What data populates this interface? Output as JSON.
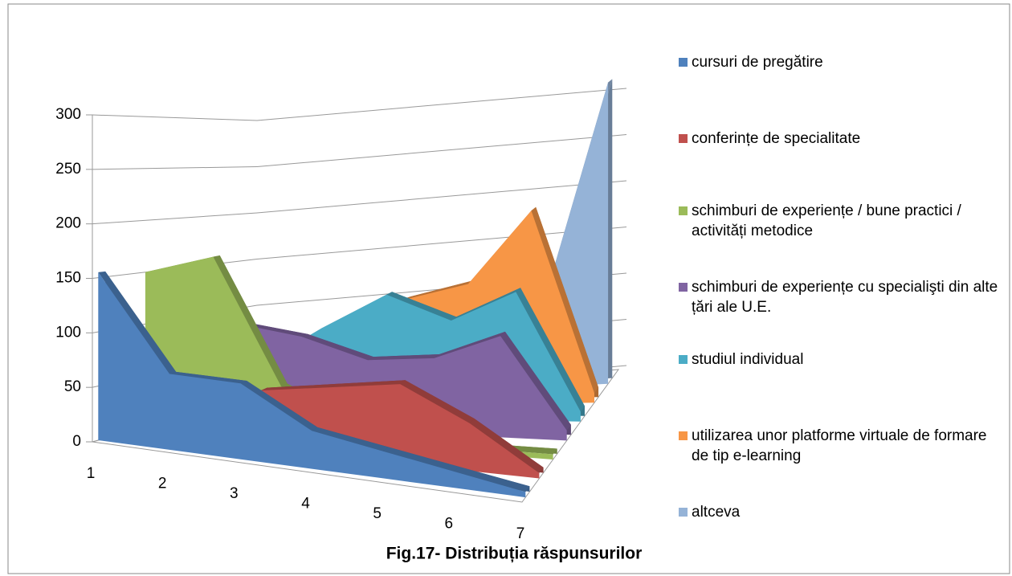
{
  "chart_data": {
    "type": "area3d",
    "title": "Fig.17- Distribuția răspunsurilor",
    "categories": [
      "1",
      "2",
      "3",
      "4",
      "5",
      "6",
      "7"
    ],
    "series": [
      {
        "name": "cursuri de pregătire",
        "color": "#4f81bd",
        "values": [
          155,
          70,
          70,
          35,
          25,
          15,
          5
        ]
      },
      {
        "name": "conferințe de specialitate",
        "color": "#c0504d",
        "values": [
          0,
          10,
          55,
          65,
          75,
          45,
          5
        ]
      },
      {
        "name": "schimburi de experiențe / bune practici / activități metodice",
        "color": "#9bbb59",
        "values": [
          150,
          170,
          50,
          20,
          10,
          5,
          5
        ]
      },
      {
        "name": "schimburi de experiențe cu specialişti din alte țări ale U.E.",
        "color": "#8064a2",
        "values": [
          0,
          100,
          90,
          70,
          75,
          100,
          10
        ]
      },
      {
        "name": "studiul individual",
        "color": "#4bacc6",
        "values": [
          0,
          50,
          90,
          125,
          100,
          130,
          10
        ]
      },
      {
        "name": "utilizarea unor platforme virtuale de formare de tip e-learning",
        "color": "#f79646",
        "values": [
          0,
          40,
          90,
          110,
          125,
          200,
          10
        ]
      },
      {
        "name": "altceva",
        "color": "#95b3d7",
        "values": [
          0,
          0,
          0,
          0,
          20,
          100,
          320
        ]
      }
    ],
    "ylim": [
      0,
      300
    ],
    "yticks": [
      0,
      50,
      100,
      150,
      200,
      250,
      300
    ],
    "grid": true,
    "legend": "right"
  }
}
